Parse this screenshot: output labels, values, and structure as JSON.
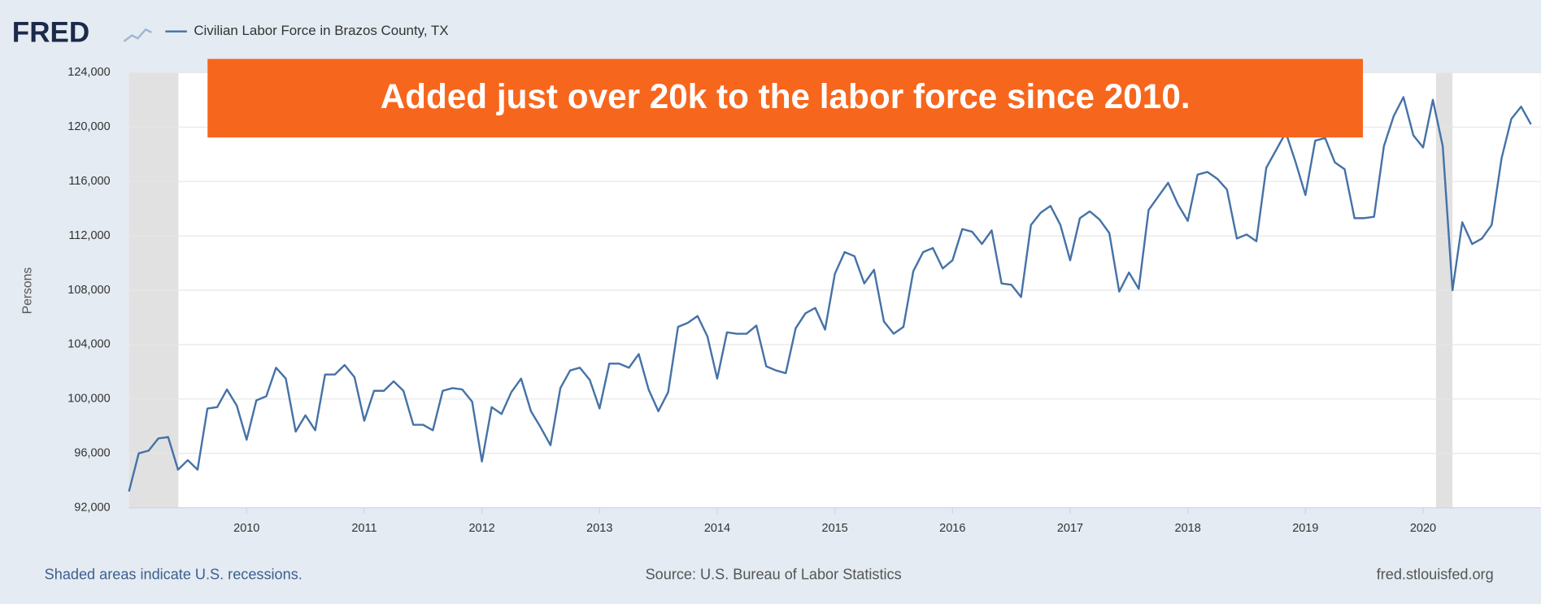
{
  "logo": "FRED",
  "chart_data": {
    "type": "line",
    "title": "Civilian Labor Force in Brazos County, TX",
    "ylabel": "Persons",
    "annotation": "Added just over 20k to the labor force since 2010.",
    "footer_left": "Shaded areas indicate U.S. recessions.",
    "source": "Source: U.S. Bureau of Labor Statistics",
    "footer_right": "fred.stlouisfed.org",
    "xlim": [
      2009,
      2021
    ],
    "xticks": [
      2010,
      2011,
      2012,
      2013,
      2014,
      2015,
      2016,
      2017,
      2018,
      2019,
      2020
    ],
    "ylim": [
      92000,
      124000
    ],
    "yticks": [
      {
        "value": 92000,
        "label": "92,000"
      },
      {
        "value": 96000,
        "label": "96,000"
      },
      {
        "value": 100000,
        "label": "100,000"
      },
      {
        "value": 104000,
        "label": "104,000"
      },
      {
        "value": 108000,
        "label": "108,000"
      },
      {
        "value": 112000,
        "label": "112,000"
      },
      {
        "value": 116000,
        "label": "116,000"
      },
      {
        "value": 120000,
        "label": "120,000"
      },
      {
        "value": 124000,
        "label": "124,000"
      }
    ],
    "grid": true,
    "recessions": [
      [
        2009,
        2009.42
      ],
      [
        2020.11,
        2020.25
      ]
    ],
    "x": [
      2009,
      2009.083,
      2009.167,
      2009.25,
      2009.333,
      2009.417,
      2009.5,
      2009.583,
      2009.667,
      2009.75,
      2009.833,
      2009.917,
      2010,
      2010.083,
      2010.167,
      2010.25,
      2010.333,
      2010.417,
      2010.5,
      2010.583,
      2010.667,
      2010.75,
      2010.833,
      2010.917,
      2011,
      2011.083,
      2011.167,
      2011.25,
      2011.333,
      2011.417,
      2011.5,
      2011.583,
      2011.667,
      2011.75,
      2011.833,
      2011.917,
      2012,
      2012.083,
      2012.167,
      2012.25,
      2012.333,
      2012.417,
      2012.5,
      2012.583,
      2012.667,
      2012.75,
      2012.833,
      2012.917,
      2013,
      2013.083,
      2013.167,
      2013.25,
      2013.333,
      2013.417,
      2013.5,
      2013.583,
      2013.667,
      2013.75,
      2013.833,
      2013.917,
      2014,
      2014.083,
      2014.167,
      2014.25,
      2014.333,
      2014.417,
      2014.5,
      2014.583,
      2014.667,
      2014.75,
      2014.833,
      2014.917,
      2015,
      2015.083,
      2015.167,
      2015.25,
      2015.333,
      2015.417,
      2015.5,
      2015.583,
      2015.667,
      2015.75,
      2015.833,
      2015.917,
      2016,
      2016.083,
      2016.167,
      2016.25,
      2016.333,
      2016.417,
      2016.5,
      2016.583,
      2016.667,
      2016.75,
      2016.833,
      2016.917,
      2017,
      2017.083,
      2017.167,
      2017.25,
      2017.333,
      2017.417,
      2017.5,
      2017.583,
      2017.667,
      2017.75,
      2017.833,
      2017.917,
      2018,
      2018.083,
      2018.167,
      2018.25,
      2018.333,
      2018.417,
      2018.5,
      2018.583,
      2018.667,
      2018.75,
      2018.833,
      2018.917,
      2019,
      2019.083,
      2019.167,
      2019.25,
      2019.333,
      2019.417,
      2019.5,
      2019.583,
      2019.667,
      2019.75,
      2019.833,
      2019.917,
      2020,
      2020.083,
      2020.167,
      2020.25,
      2020.333,
      2020.417,
      2020.5,
      2020.583,
      2020.667,
      2020.75,
      2020.833,
      2020.917
    ],
    "series": [
      {
        "name": "Civilian Labor Force in Brazos County, TX",
        "color": "#4572a7",
        "values": [
          93200,
          96000,
          96200,
          97100,
          97200,
          94800,
          95500,
          94800,
          99300,
          99400,
          100700,
          99500,
          97000,
          99900,
          100200,
          102300,
          101500,
          97600,
          98800,
          97700,
          101800,
          101800,
          102500,
          101600,
          98400,
          100600,
          100600,
          101300,
          100600,
          98100,
          98100,
          97700,
          100600,
          100800,
          100700,
          99800,
          95400,
          99400,
          98900,
          100500,
          101500,
          99100,
          97900,
          96600,
          100800,
          102100,
          102300,
          101400,
          99300,
          102600,
          102600,
          102300,
          103300,
          100700,
          99100,
          100500,
          105300,
          105600,
          106100,
          104600,
          101500,
          104900,
          104800,
          104800,
          105400,
          102400,
          102100,
          101900,
          105200,
          106300,
          106700,
          105100,
          109200,
          110800,
          110500,
          108500,
          109500,
          105700,
          104800,
          105300,
          109400,
          110800,
          111100,
          109600,
          110200,
          112500,
          112300,
          111400,
          112400,
          108500,
          108400,
          107500,
          112800,
          113700,
          114200,
          112800,
          110200,
          113300,
          113800,
          113200,
          112200,
          107900,
          109300,
          108100,
          113900,
          114900,
          115900,
          114300,
          113100,
          116500,
          116700,
          116200,
          115400,
          111800,
          112100,
          111600,
          117000,
          118300,
          119600,
          117400,
          115000,
          119000,
          119200,
          117400,
          116900,
          113300,
          113300,
          113400,
          118600,
          120800,
          122200,
          119400,
          118500,
          122000,
          118600,
          108000,
          113000,
          111400,
          111800,
          112800,
          117700,
          120600,
          121500,
          120200
        ]
      }
    ]
  }
}
